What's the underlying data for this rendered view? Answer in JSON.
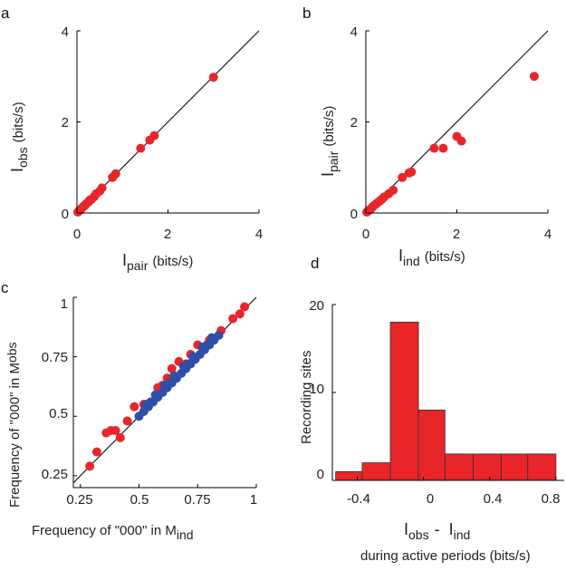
{
  "figure": {
    "panel_labels": [
      "a",
      "b",
      "c",
      "d"
    ],
    "colors": {
      "red": "#e8262a",
      "blue": "#2e4fa8",
      "bar_edge": "#333333",
      "axis": "#000000"
    }
  },
  "chart_data": [
    {
      "type": "scatter",
      "panel": "a",
      "xlim": [
        0,
        4
      ],
      "ylim": [
        0,
        4
      ],
      "xticks": [
        "0",
        "2",
        "4"
      ],
      "yticks": [
        "0",
        "2",
        "4"
      ],
      "xlabel": {
        "main": "I",
        "sub": "pair",
        "unit": "(bits/s)"
      },
      "ylabel": {
        "main": "I",
        "sub": "obs",
        "unit": "(bits/s)"
      },
      "diagonal": true,
      "series": [
        {
          "name": "sites",
          "color": "#e8262a",
          "points": [
            [
              0.02,
              0.02
            ],
            [
              0.04,
              0.04
            ],
            [
              0.06,
              0.06
            ],
            [
              0.08,
              0.07
            ],
            [
              0.1,
              0.1
            ],
            [
              0.12,
              0.12
            ],
            [
              0.15,
              0.15
            ],
            [
              0.18,
              0.17
            ],
            [
              0.2,
              0.2
            ],
            [
              0.25,
              0.24
            ],
            [
              0.28,
              0.28
            ],
            [
              0.32,
              0.3
            ],
            [
              0.38,
              0.36
            ],
            [
              0.42,
              0.42
            ],
            [
              0.5,
              0.48
            ],
            [
              0.55,
              0.55
            ],
            [
              0.78,
              0.78
            ],
            [
              0.85,
              0.86
            ],
            [
              1.4,
              1.42
            ],
            [
              1.6,
              1.6
            ],
            [
              1.7,
              1.7
            ],
            [
              3.0,
              2.98
            ]
          ]
        }
      ]
    },
    {
      "type": "scatter",
      "panel": "b",
      "xlim": [
        0,
        4
      ],
      "ylim": [
        0,
        4
      ],
      "xticks": [
        "0",
        "2",
        "4"
      ],
      "yticks": [
        "0",
        "2",
        "4"
      ],
      "xlabel": {
        "main": "I",
        "sub": "ind",
        "unit": "(bits/s)"
      },
      "ylabel": {
        "main": "I",
        "sub": "pair",
        "unit": "(bits/s)"
      },
      "diagonal": true,
      "series": [
        {
          "name": "sites",
          "color": "#e8262a",
          "points": [
            [
              0.02,
              0.02
            ],
            [
              0.05,
              0.04
            ],
            [
              0.08,
              0.07
            ],
            [
              0.12,
              0.1
            ],
            [
              0.15,
              0.14
            ],
            [
              0.2,
              0.18
            ],
            [
              0.25,
              0.22
            ],
            [
              0.3,
              0.26
            ],
            [
              0.35,
              0.3
            ],
            [
              0.4,
              0.35
            ],
            [
              0.5,
              0.42
            ],
            [
              0.6,
              0.5
            ],
            [
              0.8,
              0.78
            ],
            [
              0.95,
              0.88
            ],
            [
              1.0,
              0.9
            ],
            [
              1.5,
              1.42
            ],
            [
              1.7,
              1.42
            ],
            [
              2.0,
              1.68
            ],
            [
              2.1,
              1.58
            ],
            [
              3.7,
              3.0
            ]
          ]
        }
      ]
    },
    {
      "type": "scatter",
      "panel": "c",
      "xlim": [
        0.22,
        1.0
      ],
      "ylim": [
        0.2,
        1.0
      ],
      "xticks": [
        "0.25",
        "0.5",
        "0.75",
        "1"
      ],
      "yticks": [
        "0.25",
        "0.5",
        "0.75",
        "1"
      ],
      "xlabel": {
        "main": "Frequency of \"000\" in M",
        "sub": "ind"
      },
      "ylabel": {
        "main": "Frequency of \"000\" in M",
        "sub": "obs"
      },
      "diagonal": true,
      "series": [
        {
          "name": "red",
          "color": "#e8262a",
          "points": [
            [
              0.29,
              0.29
            ],
            [
              0.32,
              0.35
            ],
            [
              0.36,
              0.43
            ],
            [
              0.38,
              0.44
            ],
            [
              0.4,
              0.44
            ],
            [
              0.42,
              0.41
            ],
            [
              0.45,
              0.48
            ],
            [
              0.48,
              0.54
            ],
            [
              0.52,
              0.55
            ],
            [
              0.55,
              0.56
            ],
            [
              0.58,
              0.62
            ],
            [
              0.6,
              0.63
            ],
            [
              0.62,
              0.66
            ],
            [
              0.64,
              0.7
            ],
            [
              0.67,
              0.73
            ],
            [
              0.7,
              0.72
            ],
            [
              0.72,
              0.76
            ],
            [
              0.75,
              0.8
            ],
            [
              0.78,
              0.79
            ],
            [
              0.8,
              0.82
            ],
            [
              0.85,
              0.86
            ],
            [
              0.9,
              0.91
            ],
            [
              0.93,
              0.93
            ],
            [
              0.95,
              0.96
            ]
          ]
        },
        {
          "name": "blue",
          "color": "#2e4fa8",
          "points": [
            [
              0.5,
              0.5
            ],
            [
              0.52,
              0.52
            ],
            [
              0.54,
              0.54
            ],
            [
              0.56,
              0.56
            ],
            [
              0.58,
              0.58
            ],
            [
              0.6,
              0.6
            ],
            [
              0.62,
              0.62
            ],
            [
              0.64,
              0.64
            ],
            [
              0.66,
              0.66
            ],
            [
              0.68,
              0.68
            ],
            [
              0.7,
              0.7
            ],
            [
              0.72,
              0.72
            ],
            [
              0.74,
              0.74
            ],
            [
              0.76,
              0.76
            ],
            [
              0.78,
              0.78
            ],
            [
              0.8,
              0.8
            ],
            [
              0.82,
              0.82
            ],
            [
              0.84,
              0.84
            ],
            [
              0.53,
              0.55
            ],
            [
              0.57,
              0.59
            ],
            [
              0.61,
              0.63
            ],
            [
              0.65,
              0.67
            ],
            [
              0.69,
              0.71
            ],
            [
              0.73,
              0.75
            ],
            [
              0.77,
              0.79
            ],
            [
              0.81,
              0.83
            ],
            [
              0.55,
              0.56
            ],
            [
              0.63,
              0.64
            ],
            [
              0.71,
              0.72
            ],
            [
              0.79,
              0.8
            ]
          ]
        }
      ]
    },
    {
      "type": "bar",
      "panel": "d",
      "xlim": [
        -0.55,
        0.85
      ],
      "ylim": [
        0,
        20
      ],
      "xticks": [
        "-0.4",
        "0",
        "0.4",
        "0.8"
      ],
      "xtick_values": [
        -0.4,
        0,
        0.4,
        0.8
      ],
      "yticks": [
        "0",
        "10",
        "20"
      ],
      "ytick_values": [
        0,
        10,
        20
      ],
      "bins": [
        [
          -0.53,
          -0.37
        ],
        [
          -0.37,
          -0.2
        ],
        [
          -0.2,
          -0.03
        ],
        [
          -0.03,
          0.13
        ],
        [
          0.13,
          0.3
        ],
        [
          0.3,
          0.47
        ],
        [
          0.47,
          0.63
        ],
        [
          0.63,
          0.8
        ]
      ],
      "values": [
        1,
        2,
        18,
        8,
        3,
        3,
        3,
        3
      ],
      "ylabel": "Recording sites",
      "xlabel": {
        "main1": "I",
        "sub1": "obs",
        "sep": "-",
        "main2": "I",
        "sub2": "ind",
        "line2": "during active periods (bits/s)"
      },
      "color": "#e8262a"
    }
  ]
}
